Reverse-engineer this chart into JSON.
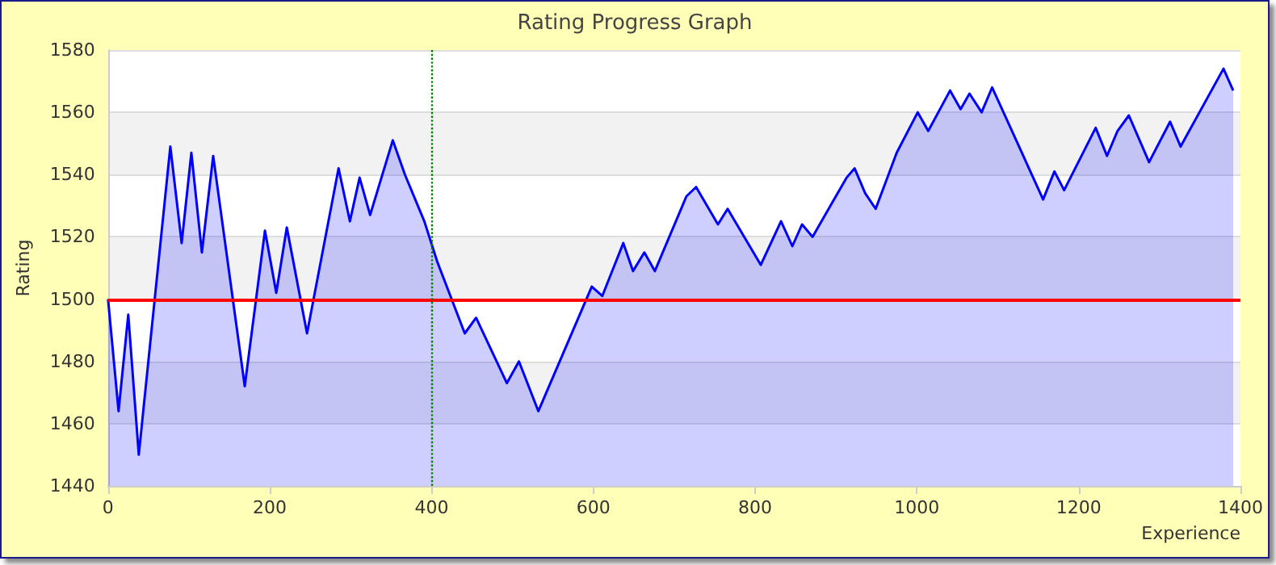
{
  "chart_data": {
    "type": "area",
    "title": "Rating Progress Graph",
    "xlabel": "Experience",
    "ylabel": "Rating",
    "x": [
      0,
      13,
      25,
      38,
      77,
      91,
      103,
      116,
      130,
      169,
      194,
      208,
      221,
      246,
      285,
      299,
      311,
      324,
      352,
      367,
      391,
      407,
      441,
      455,
      493,
      508,
      532,
      598,
      611,
      637,
      649,
      663,
      676,
      715,
      727,
      754,
      766,
      807,
      832,
      846,
      858,
      871,
      913,
      923,
      936,
      949,
      975,
      1001,
      1014,
      1041,
      1054,
      1065,
      1080,
      1093,
      1107,
      1156,
      1170,
      1182,
      1221,
      1235,
      1248,
      1262,
      1287,
      1313,
      1326,
      1379,
      1391
    ],
    "series": [
      {
        "color": "#0000ff",
        "values": [
          1500,
          1464,
          1495,
          1450,
          1549,
          1518,
          1547,
          1515,
          1546,
          1472,
          1522,
          1502,
          1523,
          1489,
          1542,
          1525,
          1539,
          1527,
          1551,
          1540,
          1525,
          1512,
          1489,
          1494,
          1473,
          1480,
          1464,
          1504,
          1501,
          1518,
          1509,
          1515,
          1509,
          1533,
          1536,
          1524,
          1529,
          1511,
          1525,
          1517,
          1524,
          1520,
          1539,
          1542,
          1534,
          1529,
          1547,
          1560,
          1554,
          1567,
          1561,
          1566,
          1560,
          1568,
          1560,
          1532,
          1541,
          1535,
          1555,
          1546,
          1554,
          1559,
          1544,
          1557,
          1549,
          1574,
          1567
        ]
      }
    ],
    "xlim": [
      0,
      1400
    ],
    "xticks": [
      0,
      200,
      400,
      600,
      800,
      1000,
      1200,
      1400
    ],
    "ylim": [
      1440,
      1580
    ],
    "yticks": [
      1440,
      1460,
      1480,
      1500,
      1520,
      1540,
      1560,
      1580
    ],
    "ref_lines": [
      {
        "axis": "y",
        "value": 1500,
        "color": "#ff0000",
        "line_style": "solid"
      },
      {
        "axis": "x",
        "value": 400,
        "color": "#008000",
        "line_style": "dotted"
      }
    ],
    "grid": "y",
    "marker": "none",
    "line_style": "solid"
  }
}
